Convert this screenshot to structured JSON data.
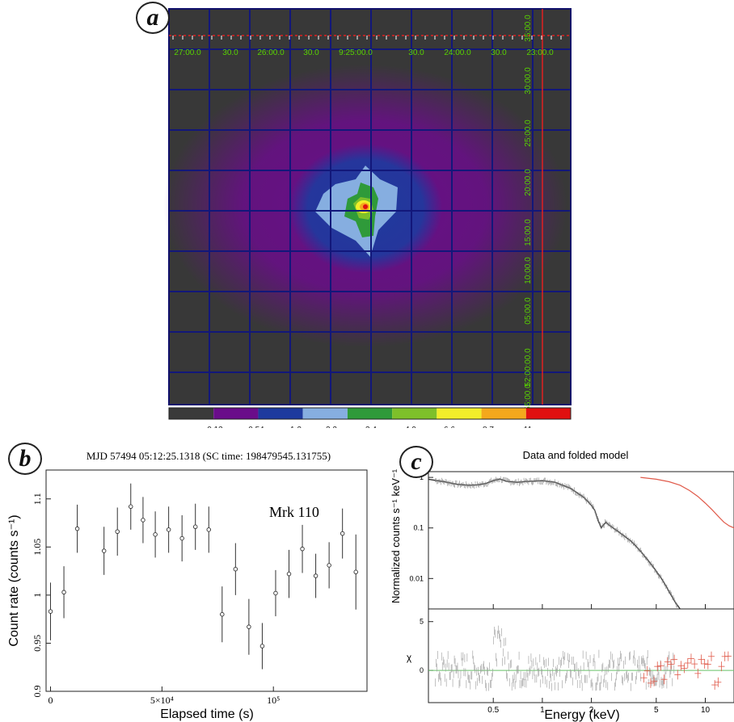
{
  "panels": {
    "a": {
      "label": "a",
      "ra_ticks": [
        "27:00.0",
        "30.0",
        "26:00.0",
        "30.0",
        "9:25:00.0",
        "30.0",
        "24:00.0",
        "30.0",
        "23:00.0"
      ],
      "dec_ticks": [
        "35:00.0",
        "30:00.0",
        "25:00.0",
        "20:00.0",
        "15:00.0",
        "10:00.0",
        "05:00.0",
        "52:00:00.0",
        "55:00.0"
      ],
      "colorbar": {
        "labels": [
          "0.13",
          "0.54",
          "1.2",
          "2.2",
          "3.4",
          "4.9",
          "6.6",
          "8.7",
          "11"
        ],
        "colors": [
          "#3a3a3a",
          "#6a0d8a",
          "#1e3a9e",
          "#86aee0",
          "#2f9a3a",
          "#7ec02a",
          "#f2ee2a",
          "#f4a81c",
          "#e01010"
        ]
      },
      "colors": {
        "frame": "#10106a",
        "grid": "#12177a",
        "background": "#383838",
        "marker": "#e02020",
        "tick_text": "#58d200"
      }
    },
    "b": {
      "label": "b"
    },
    "c": {
      "label": "c"
    }
  },
  "chart_data": [
    {
      "id": "light-curve",
      "type": "scatter",
      "title": "MJD 57494 05:12:25.1318 (SC time: 198479545.131755)",
      "annotation": "Mrk 110",
      "xlabel": "Elapsed time (s)",
      "ylabel": "Count rate (counts s⁻¹)",
      "xlim": [
        -2000,
        142000
      ],
      "ylim": [
        0.9,
        1.13
      ],
      "x_ticks": [
        {
          "value": 0,
          "label": "0"
        },
        {
          "value": 50000,
          "label": "5×10⁴"
        },
        {
          "value": 100000,
          "label": "10⁵"
        }
      ],
      "y_ticks": [
        {
          "value": 0.9,
          "label": "0.9"
        },
        {
          "value": 0.95,
          "label": "0.95"
        },
        {
          "value": 1.0,
          "label": "1"
        },
        {
          "value": 1.05,
          "label": "1.05"
        },
        {
          "value": 1.1,
          "label": "1.1"
        }
      ],
      "points": [
        {
          "x": 0,
          "y": 0.983,
          "err": 0.03
        },
        {
          "x": 6000,
          "y": 1.003,
          "err": 0.027
        },
        {
          "x": 12000,
          "y": 1.069,
          "err": 0.025
        },
        {
          "x": 24000,
          "y": 1.046,
          "err": 0.025
        },
        {
          "x": 30000,
          "y": 1.066,
          "err": 0.025
        },
        {
          "x": 36000,
          "y": 1.092,
          "err": 0.024
        },
        {
          "x": 41500,
          "y": 1.078,
          "err": 0.024
        },
        {
          "x": 47000,
          "y": 1.063,
          "err": 0.024
        },
        {
          "x": 53000,
          "y": 1.068,
          "err": 0.024
        },
        {
          "x": 59000,
          "y": 1.059,
          "err": 0.024
        },
        {
          "x": 65000,
          "y": 1.071,
          "err": 0.024
        },
        {
          "x": 71000,
          "y": 1.068,
          "err": 0.024
        },
        {
          "x": 77000,
          "y": 0.98,
          "err": 0.029
        },
        {
          "x": 83000,
          "y": 1.027,
          "err": 0.027
        },
        {
          "x": 89000,
          "y": 0.967,
          "err": 0.029
        },
        {
          "x": 95000,
          "y": 0.947,
          "err": 0.024
        },
        {
          "x": 101000,
          "y": 1.002,
          "err": 0.024
        },
        {
          "x": 107000,
          "y": 1.022,
          "err": 0.025
        },
        {
          "x": 113000,
          "y": 1.048,
          "err": 0.025
        },
        {
          "x": 119000,
          "y": 1.02,
          "err": 0.023
        },
        {
          "x": 125000,
          "y": 1.031,
          "err": 0.024
        },
        {
          "x": 131000,
          "y": 1.064,
          "err": 0.026
        },
        {
          "x": 137000,
          "y": 1.024,
          "err": 0.039
        }
      ]
    },
    {
      "id": "spectrum",
      "type": "line",
      "title": "Data and folded model",
      "xlabel": "Energy (keV)",
      "ylabel": "Normalized counts s⁻¹ keV⁻¹",
      "ylabel_residual": "χ",
      "x_scale": "log",
      "y_scale": "log",
      "xlim": [
        0.2,
        15
      ],
      "ylim": [
        0.0025,
        1.3
      ],
      "x_ticks": [
        {
          "value": 0.5,
          "label": "0.5"
        },
        {
          "value": 1,
          "label": "1"
        },
        {
          "value": 2,
          "label": "2"
        },
        {
          "value": 5,
          "label": "5"
        },
        {
          "value": 10,
          "label": "10"
        }
      ],
      "y_ticks": [
        {
          "value": 1,
          "label": "1"
        },
        {
          "value": 0.1,
          "label": "0.1"
        },
        {
          "value": 0.01,
          "label": "0.01"
        }
      ],
      "residual_ylim": [
        -3.3,
        6.3
      ],
      "residual_ticks": [
        {
          "value": 5,
          "label": "5"
        },
        {
          "value": 0,
          "label": "0"
        }
      ],
      "series": [
        {
          "color": "#333333",
          "model": [
            [
              0.2,
              0.92
            ],
            [
              0.25,
              0.82
            ],
            [
              0.3,
              0.73
            ],
            [
              0.35,
              0.7
            ],
            [
              0.4,
              0.71
            ],
            [
              0.45,
              0.76
            ],
            [
              0.5,
              0.86
            ],
            [
              0.55,
              0.93
            ],
            [
              0.6,
              0.84
            ],
            [
              0.7,
              0.8
            ],
            [
              0.8,
              0.83
            ],
            [
              1.0,
              0.86
            ],
            [
              1.2,
              0.8
            ],
            [
              1.5,
              0.6
            ],
            [
              1.8,
              0.4
            ],
            [
              2.0,
              0.28
            ],
            [
              2.1,
              0.22
            ],
            [
              2.2,
              0.14
            ],
            [
              2.3,
              0.1
            ],
            [
              2.45,
              0.13
            ],
            [
              2.6,
              0.11
            ],
            [
              3.0,
              0.08
            ],
            [
              3.5,
              0.055
            ],
            [
              4.0,
              0.035
            ],
            [
              4.5,
              0.022
            ],
            [
              5.0,
              0.014
            ],
            [
              5.5,
              0.009
            ],
            [
              6.0,
              0.0055
            ],
            [
              6.5,
              0.0035
            ],
            [
              7.0,
              0.0025
            ]
          ]
        },
        {
          "color": "#e05a4a",
          "model": [
            [
              4.0,
              1.0
            ],
            [
              5.0,
              0.92
            ],
            [
              6.0,
              0.82
            ],
            [
              7.0,
              0.7
            ],
            [
              8.0,
              0.55
            ],
            [
              9.0,
              0.42
            ],
            [
              10.0,
              0.31
            ],
            [
              11.0,
              0.23
            ],
            [
              12.0,
              0.17
            ],
            [
              13.0,
              0.13
            ],
            [
              14.0,
              0.11
            ],
            [
              15.0,
              0.1
            ]
          ]
        }
      ],
      "residual_zero_color": "#68c068"
    }
  ]
}
